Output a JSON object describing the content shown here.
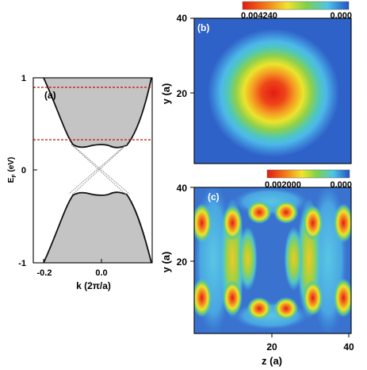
{
  "panel_a": {
    "label": "(a)",
    "xlabel": "k (2π/a)",
    "ylabel_main": "E",
    "ylabel_sub": "F",
    "ylabel_unit": " (eV)",
    "xticks": [
      "-0.2",
      "0.0",
      "0.2"
    ],
    "yticks": [
      "1",
      "0",
      "-1"
    ],
    "fermi_levels_ev": [
      0.88,
      0.33
    ]
  },
  "panel_b": {
    "label": "(b)",
    "colorbar_max": "0.004240",
    "colorbar_min": "0.000",
    "ylabel": "y (a)",
    "yticks": [
      "40",
      "20"
    ]
  },
  "panel_c": {
    "label": "(c)",
    "colorbar_max": "0.002000",
    "colorbar_min": "0.000",
    "ylabel": "y (a)",
    "xlabel": "z (a)",
    "yticks": [
      "40",
      "20"
    ],
    "xticks": [
      "20",
      "40"
    ]
  },
  "colors": {
    "filled_band": "#c4c4c4",
    "dashed_line": "#cc1100",
    "heat_high": "#e82810",
    "heat_mid": "#f0e020",
    "heat_low": "#2f62c8"
  },
  "chart_data": [
    {
      "type": "line",
      "title": "",
      "xlabel": "k (2π/a)",
      "ylabel": "EF (eV)",
      "xlim": [
        -0.23,
        0.15
      ],
      "ylim": [
        -1,
        1
      ],
      "grid": false,
      "series": [
        {
          "x": [
            -0.22,
            -0.18,
            -0.14,
            -0.1,
            -0.06,
            -0.02,
            0.0,
            0.02,
            0.06,
            0.1,
            0.14
          ],
          "y": [
            0.99,
            0.76,
            0.55,
            0.33,
            0.24,
            0.23,
            0.24,
            0.23,
            0.24,
            0.33,
            0.66
          ]
        },
        {
          "x": [
            -0.22,
            -0.18,
            -0.14,
            -0.1,
            -0.06,
            -0.02,
            0.0,
            0.02,
            0.06,
            0.1,
            0.14
          ],
          "y": [
            -0.99,
            -0.76,
            -0.55,
            -0.33,
            -0.24,
            -0.23,
            -0.24,
            -0.23,
            -0.24,
            -0.33,
            -0.66
          ]
        },
        {
          "x": [
            -0.1,
            0.0,
            0.1
          ],
          "y": [
            0.33,
            0.0,
            -0.33
          ]
        },
        {
          "x": [
            -0.1,
            0.0,
            0.1
          ],
          "y": [
            -0.33,
            0.0,
            0.33
          ]
        }
      ],
      "hlines": [
        0.88,
        0.33
      ]
    },
    {
      "type": "heatmap",
      "xlim": [
        0,
        40
      ],
      "ylim": [
        0,
        40
      ],
      "ylabel": "y (a)",
      "colorbar_range": [
        0.0,
        0.00424
      ],
      "peak_value": 0.00424,
      "peak_position": [
        20,
        20
      ]
    },
    {
      "type": "heatmap",
      "xlim": [
        0,
        40
      ],
      "ylim": [
        0,
        40
      ],
      "xlabel": "z (a)",
      "ylabel": "y (a)",
      "colorbar_range": [
        0.0,
        0.002
      ],
      "peak_value": 0.002
    }
  ]
}
